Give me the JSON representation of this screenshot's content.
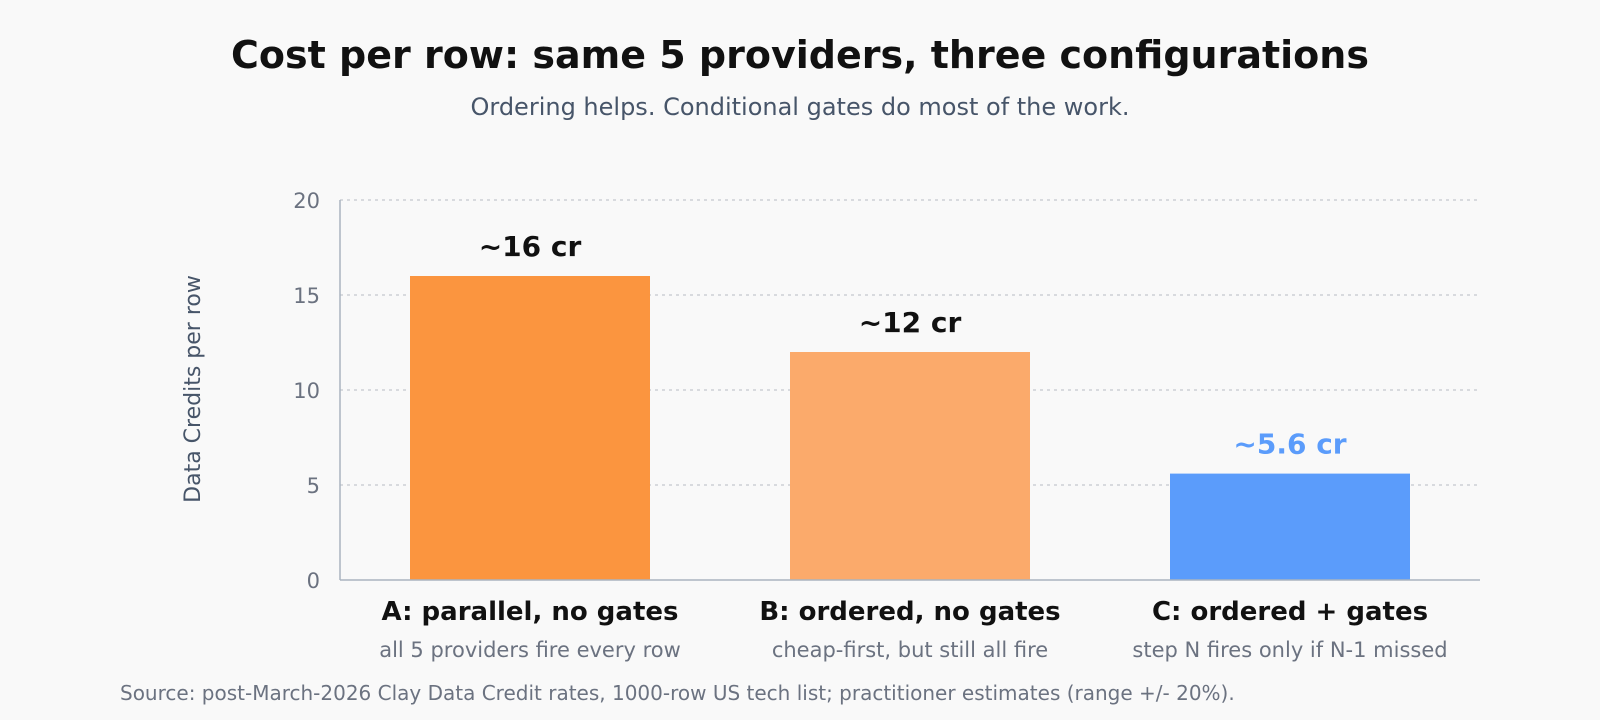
{
  "chart_data": {
    "type": "bar",
    "title": "Cost per row: same 5 providers, three configurations",
    "subtitle": "Ordering helps. Conditional gates do most of the work.",
    "ylabel": "Data Credits per row",
    "xlabel": "",
    "ylim": [
      0,
      20
    ],
    "yticks": [
      0,
      5,
      10,
      15,
      20
    ],
    "grid": true,
    "categories": [
      "A: parallel, no gates",
      "B: ordered, no gates",
      "C: ordered + gates"
    ],
    "category_sublabels": [
      "all 5 providers fire every row",
      "cheap-first, but still all fire",
      "step N fires only if N-1 missed"
    ],
    "values": [
      16,
      12,
      5.6
    ],
    "value_labels": [
      "~16 cr",
      "~12 cr",
      "~5.6 cr"
    ],
    "bar_colors": [
      "#fb953f",
      "#fbaa6b",
      "#5b9cfb"
    ],
    "value_label_colors": [
      "#111111",
      "#111111",
      "#5b9cfb"
    ],
    "source": "Source: post-March-2026 Clay Data Credit rates, 1000-row US tech list; practitioner estimates (range +/- 20%)."
  }
}
